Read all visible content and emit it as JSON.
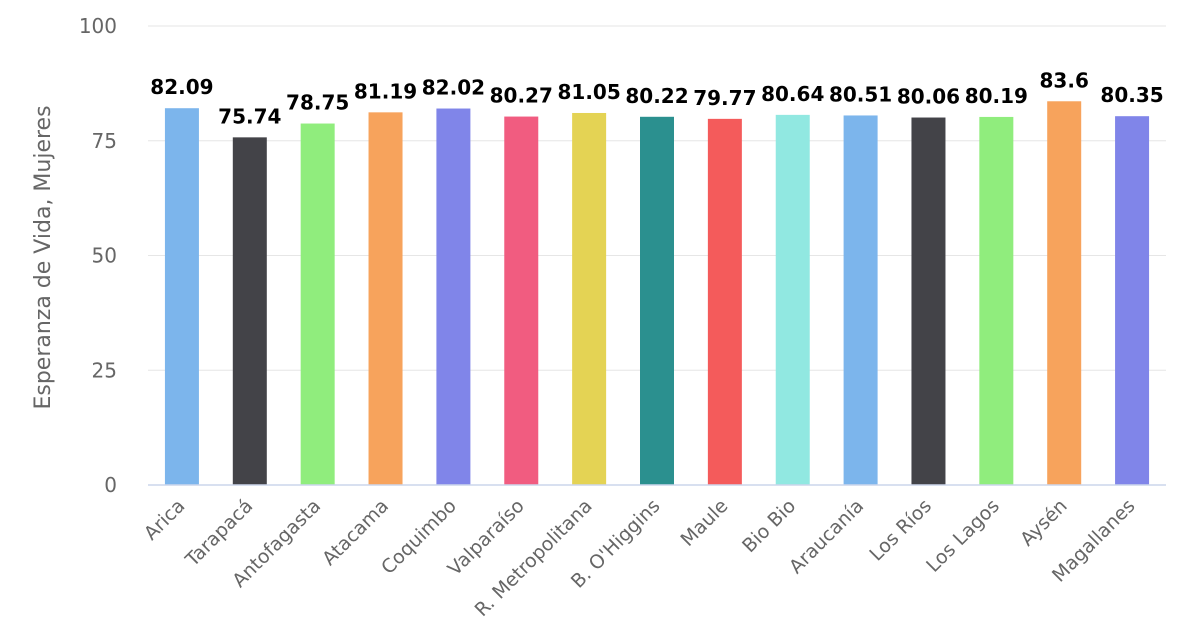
{
  "chart_data": {
    "type": "bar",
    "title": "",
    "xlabel": "",
    "ylabel": "Esperanza de Vida, Mujeres",
    "ylim": [
      0,
      100
    ],
    "yticks": [
      0,
      25,
      50,
      75,
      100
    ],
    "grid": true,
    "categories": [
      "Arica",
      "Tarapacá",
      "Antofagasta",
      "Atacama",
      "Coquimbo",
      "Valparaíso",
      "R. Metropolitana",
      "B. O'Higgins",
      "Maule",
      "Bio Bio",
      "Araucanía",
      "Los Ríos",
      "Los Lagos",
      "Aysén",
      "Magallanes"
    ],
    "values": [
      82.09,
      75.74,
      78.75,
      81.19,
      82.02,
      80.27,
      81.05,
      80.22,
      79.77,
      80.64,
      80.51,
      80.06,
      80.19,
      83.6,
      80.35
    ],
    "value_labels": [
      "82.09",
      "75.74",
      "78.75",
      "81.19",
      "82.02",
      "80.27",
      "81.05",
      "80.22",
      "79.77",
      "80.64",
      "80.51",
      "80.06",
      "80.19",
      "83.6",
      "80.35"
    ],
    "colors": [
      "#7cb5ec",
      "#434348",
      "#90ed7d",
      "#f7a35c",
      "#8085e9",
      "#f15c80",
      "#e4d354",
      "#2b908f",
      "#f45b5b",
      "#91e8e1",
      "#7cb5ec",
      "#434348",
      "#90ed7d",
      "#f7a35c",
      "#8085e9"
    ]
  }
}
